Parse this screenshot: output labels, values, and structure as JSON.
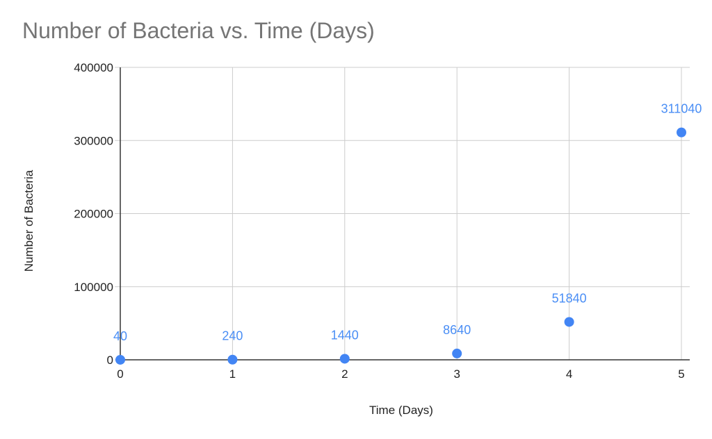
{
  "chart_data": {
    "type": "scatter",
    "title": "Number of Bacteria vs. Time (Days)",
    "xlabel": "Time (Days)",
    "ylabel": "Number of Bacteria",
    "xlim": [
      0,
      5
    ],
    "ylim": [
      0,
      400000
    ],
    "x_ticks": [
      "0",
      "1",
      "2",
      "3",
      "4",
      "5"
    ],
    "y_ticks": [
      "0",
      "100000",
      "200000",
      "300000",
      "400000"
    ],
    "grid": true,
    "series": [
      {
        "x": [
          0,
          1,
          2,
          3,
          4,
          5
        ],
        "y": [
          40,
          240,
          1440,
          8640,
          51840,
          311040
        ],
        "labels": [
          "40",
          "240",
          "1440",
          "8640",
          "51840",
          "311040"
        ]
      }
    ],
    "colors": {
      "point": "#4285f4",
      "label": "#4a8ef5",
      "grid": "#cccccc",
      "axis": "#333333",
      "title": "#757575"
    }
  }
}
